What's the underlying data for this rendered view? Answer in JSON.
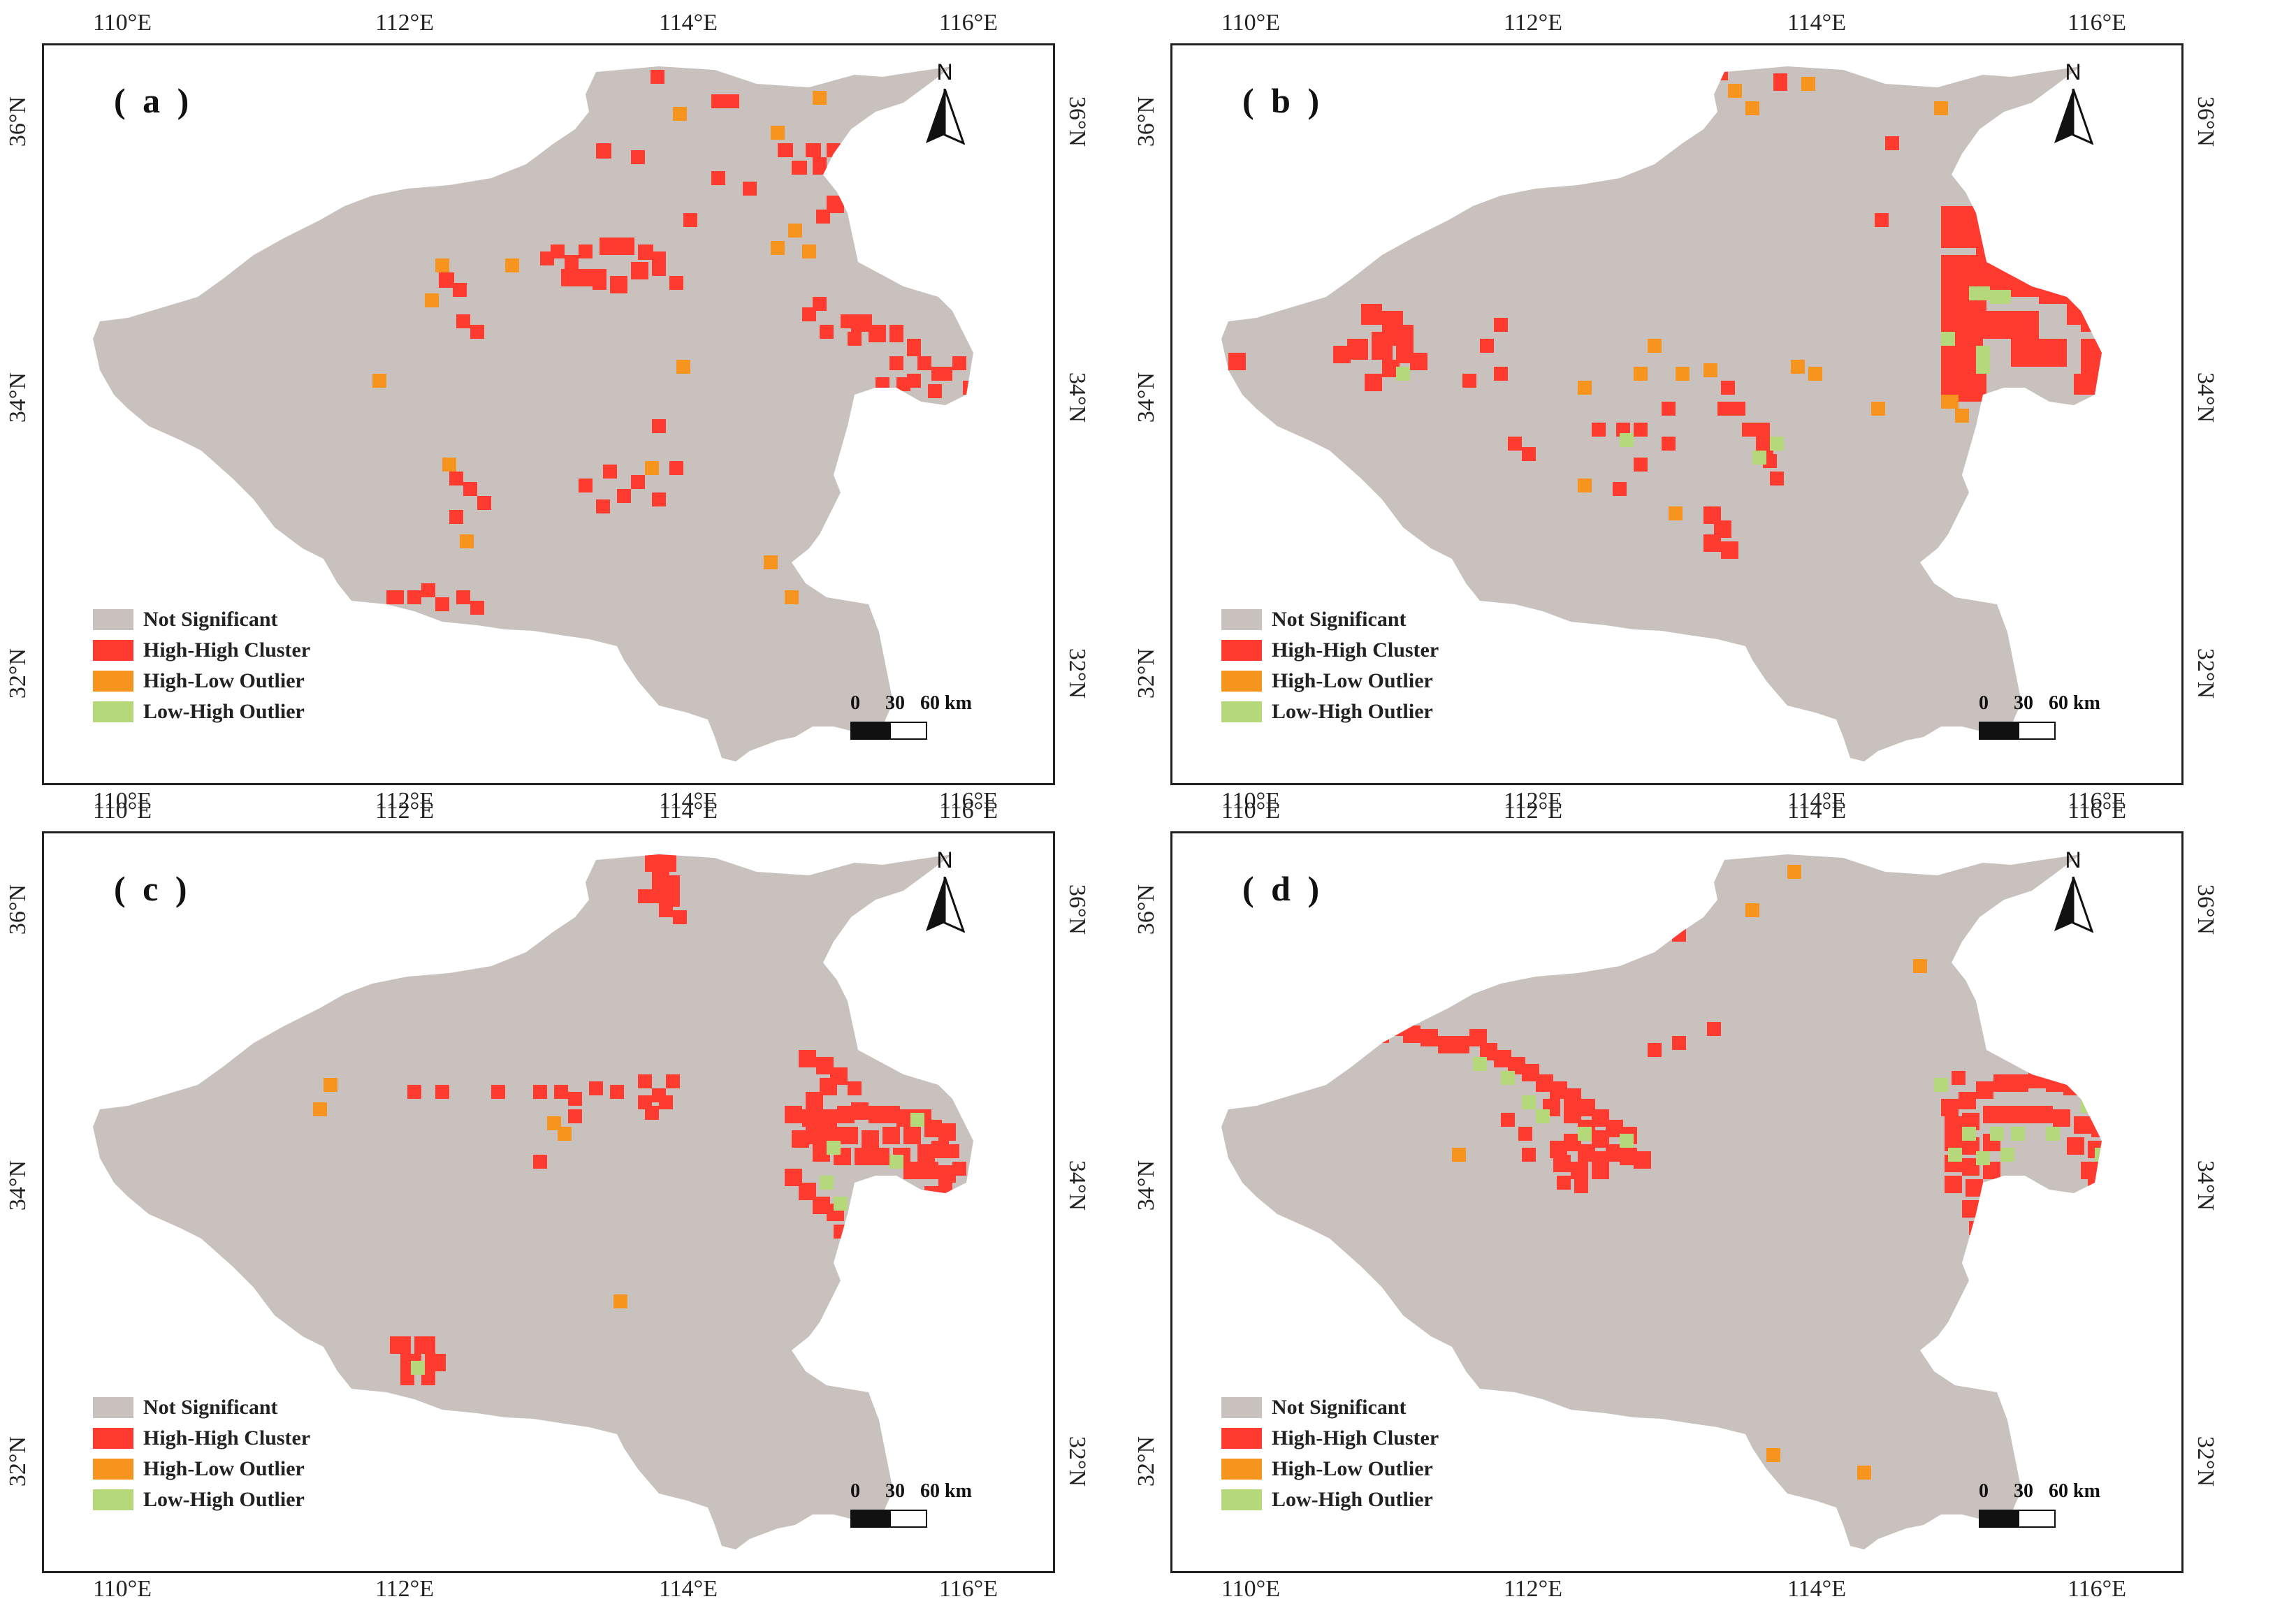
{
  "colors": {
    "not_significant": "#c9c1be",
    "high_high": "#ff3b30",
    "high_low": "#f7941d",
    "low_high": "#b5d87a"
  },
  "axes": {
    "lon_ticks": [
      "110°E",
      "112°E",
      "114°E",
      "116°E"
    ],
    "lat_ticks": [
      "36°N",
      "34°N",
      "32°N"
    ]
  },
  "legend": [
    {
      "label": "Not Significant",
      "color_key": "not_significant"
    },
    {
      "label": "High-High Cluster",
      "color_key": "high_high"
    },
    {
      "label": "High-Low Outlier",
      "color_key": "high_low"
    },
    {
      "label": "Low-High Outlier",
      "color_key": "low_high"
    }
  ],
  "north_arrow": {
    "label": "N",
    "icon": "north-arrow-icon"
  },
  "scale_bar": {
    "labels": [
      "0",
      "30",
      "60 km"
    ]
  },
  "panels": [
    {
      "label": "( a )"
    },
    {
      "label": "( b )"
    },
    {
      "label": "( c )"
    },
    {
      "label": "( d )"
    }
  ]
}
